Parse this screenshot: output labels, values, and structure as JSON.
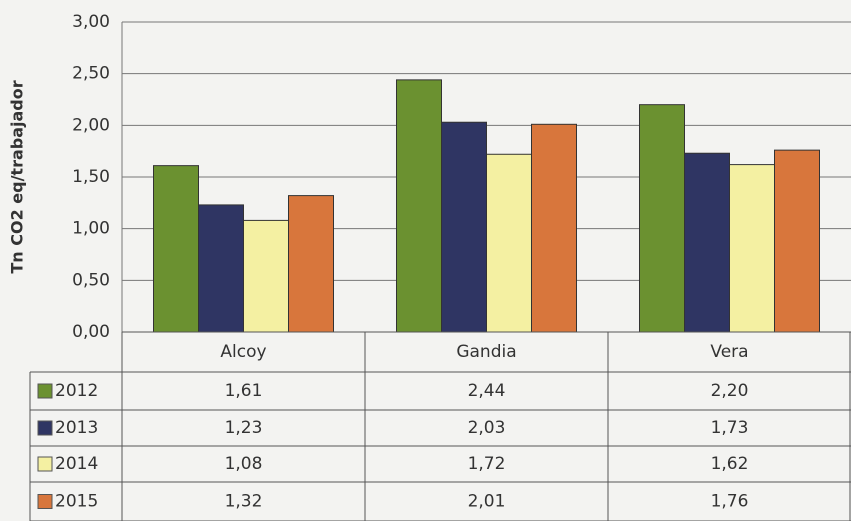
{
  "chart_data": {
    "type": "bar",
    "y_label": "Tn CO2 eq/trabajador",
    "categories": [
      "Alcoy",
      "Gandia",
      "Vera"
    ],
    "series": [
      {
        "name": "2012",
        "color": "#6b9130",
        "values": [
          1.61,
          2.44,
          2.2
        ],
        "value_labels": [
          "1,61",
          "2,44",
          "2,20"
        ]
      },
      {
        "name": "2013",
        "color": "#2f3563",
        "values": [
          1.23,
          2.03,
          1.73
        ],
        "value_labels": [
          "1,23",
          "2,03",
          "1,73"
        ]
      },
      {
        "name": "2014",
        "color": "#f4f0a2",
        "values": [
          1.08,
          1.72,
          1.62
        ],
        "value_labels": [
          "1,08",
          "1,72",
          "1,62"
        ]
      },
      {
        "name": "2015",
        "color": "#d8763c",
        "values": [
          1.32,
          2.01,
          1.76
        ],
        "value_labels": [
          "1,32",
          "2,01",
          "1,76"
        ]
      }
    ],
    "ylim": [
      0,
      3
    ],
    "yticks": [
      {
        "value": 0,
        "label": "0,00"
      },
      {
        "value": 0.5,
        "label": "0,50"
      },
      {
        "value": 1,
        "label": "1,00"
      },
      {
        "value": 1.5,
        "label": "1,50"
      },
      {
        "value": 2,
        "label": "2,00"
      },
      {
        "value": 2.5,
        "label": "2,50"
      },
      {
        "value": 3,
        "label": "3,00"
      }
    ],
    "grid": true
  }
}
